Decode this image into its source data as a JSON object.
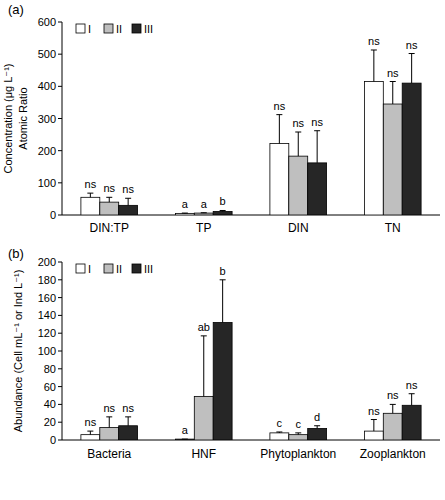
{
  "chart_data": [
    {
      "type": "bar",
      "title": "(a)",
      "ylabel": [
        "Concentration (μg L⁻¹)",
        "Atomic Ratio"
      ],
      "categories": [
        "DIN:TP",
        "TP",
        "DIN",
        "TN"
      ],
      "ylim": [
        0,
        600
      ],
      "yticks": [
        0,
        100,
        200,
        300,
        400,
        500,
        600
      ],
      "legend": "upper left",
      "grid": false,
      "series": [
        {
          "name": "I",
          "color": "#ffffff",
          "values": [
            55,
            5,
            222,
            415
          ],
          "errors": [
            13,
            1,
            90,
            98
          ],
          "annotations": [
            "ns",
            "a",
            "ns",
            "ns"
          ]
        },
        {
          "name": "II",
          "color": "#bfbfbf",
          "values": [
            40,
            6,
            183,
            345
          ],
          "errors": [
            15,
            1,
            75,
            70
          ],
          "annotations": [
            "ns",
            "a",
            "ns",
            "ns"
          ]
        },
        {
          "name": "III",
          "color": "#262626",
          "values": [
            30,
            11,
            162,
            410
          ],
          "errors": [
            22,
            3,
            100,
            92
          ],
          "annotations": [
            "ns",
            "b",
            "ns",
            "ns"
          ]
        }
      ]
    },
    {
      "type": "bar",
      "title": "(b)",
      "ylabel": [
        "Abundance (Cell mL⁻¹ or Ind L⁻¹)"
      ],
      "categories": [
        "Bacteria",
        "HNF",
        "Phytoplankton",
        "Zooplankton"
      ],
      "ylim": [
        0,
        200
      ],
      "yticks": [
        0,
        20,
        40,
        60,
        80,
        100,
        120,
        140,
        160,
        180,
        200
      ],
      "legend": "upper left",
      "grid": false,
      "series": [
        {
          "name": "I",
          "color": "#ffffff",
          "values": [
            6,
            1,
            8,
            10
          ],
          "errors": [
            4,
            0,
            1,
            13
          ],
          "annotations": [
            "ns",
            "a",
            "c",
            "ns"
          ]
        },
        {
          "name": "II",
          "color": "#bfbfbf",
          "values": [
            14,
            49,
            6,
            30
          ],
          "errors": [
            12,
            68,
            2,
            10
          ],
          "annotations": [
            "ns",
            "ab",
            "c",
            "ns"
          ]
        },
        {
          "name": "III",
          "color": "#262626",
          "values": [
            16,
            132,
            13,
            39
          ],
          "errors": [
            10,
            48,
            3,
            13
          ],
          "annotations": [
            "ns",
            "b",
            "d",
            "ns"
          ]
        }
      ]
    }
  ]
}
